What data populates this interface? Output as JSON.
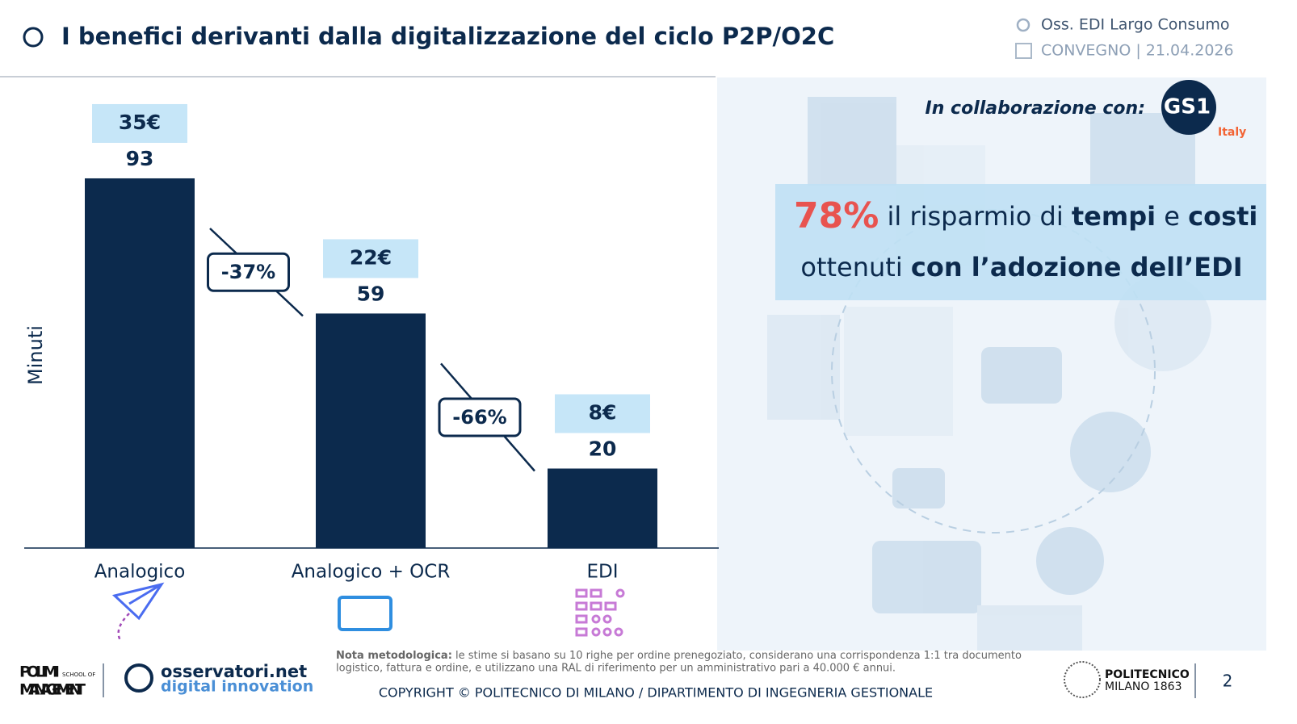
{
  "header": {
    "title": "I benefici derivanti dalla digitalizzazione del ciclo P2P/O2C",
    "event": "Oss. EDI Largo Consumo",
    "date": "CONVEGNO | 21.04.2026"
  },
  "chart_data": {
    "type": "bar",
    "y_label": "Minuti",
    "categories": [
      "Analogico",
      "Analogico + OCR",
      "EDI"
    ],
    "values": [
      93,
      59,
      20
    ],
    "color": "#0c2a4d",
    "ylim": [
      0,
      100
    ],
    "cost_labels": [
      "35€",
      "22€",
      "8€"
    ],
    "change_labels": [
      "-37%",
      "-66%"
    ]
  },
  "partner": {
    "text": "In collaborazione con:",
    "logo": "GS1",
    "country": "Italy"
  },
  "callout": {
    "highlight": "78%",
    "line1": [
      "il risparmio di",
      "tempi",
      "e",
      "costi"
    ],
    "line2": [
      "ottenuti",
      "con l’adozione dell’EDI"
    ]
  },
  "footer": {
    "note_label": "Nota metodologica:",
    "note_lines": [
      "le stime si basano su 10 righe per ordine prenegoziato, considerano una corrispondenza 1:1 tra documento",
      "logistico, fattura e ordine, e utilizzano una RAL di riferimento per un amministrativo pari a 40.000 € annui."
    ],
    "copyright": "COPYRIGHT © POLITECNICO DI MILANO / DIPARTIMENTO DI INGEGNERIA GESTIONALE",
    "page": "2",
    "polimi": [
      "POLIMI",
      "SCHOOL OF",
      "MANAGEMENT"
    ],
    "osservatori": [
      "osservatori.net",
      "digital innovation"
    ],
    "politecnico": [
      "POLITECNICO",
      "MILANO 1863"
    ]
  }
}
